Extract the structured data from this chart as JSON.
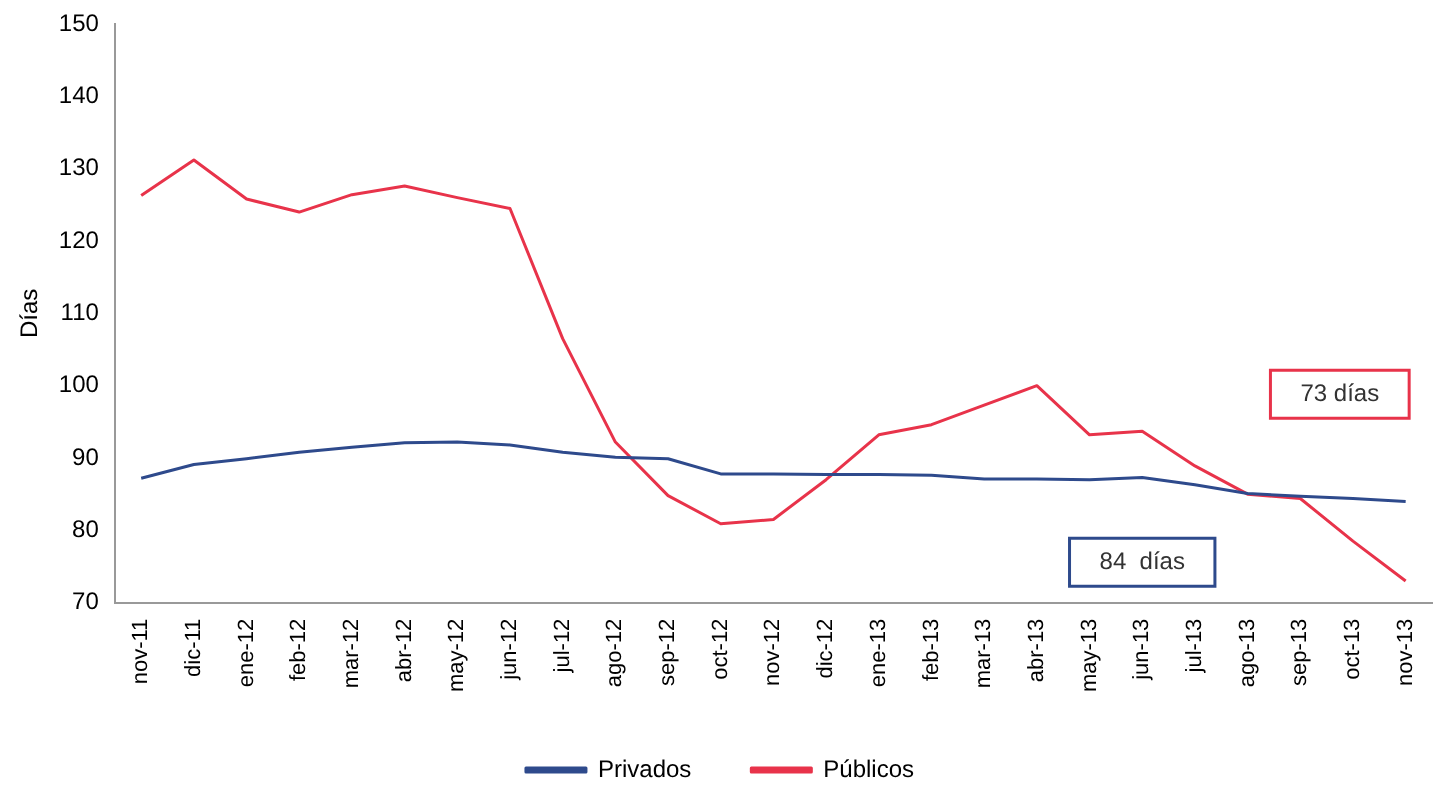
{
  "chart_data": {
    "type": "line",
    "ylabel": "Días",
    "categories": [
      "nov-11",
      "dic-11",
      "ene-12",
      "feb-12",
      "mar-12",
      "abr-12",
      "may-12",
      "jun-12",
      "jul-12",
      "ago-12",
      "sep-12",
      "oct-12",
      "nov-12",
      "dic-12",
      "ene-13",
      "feb-13",
      "mar-13",
      "abr-13",
      "may-13",
      "jun-13",
      "jul-13",
      "ago-13",
      "sep-13",
      "oct-13",
      "nov-13"
    ],
    "series": [
      {
        "name": "Privados",
        "color": "#2e4a8c",
        "values": [
          87.2,
          89.1,
          89.9,
          90.8,
          91.5,
          92.1,
          92.2,
          91.8,
          90.8,
          90.1,
          89.9,
          87.8,
          87.8,
          87.7,
          87.7,
          87.6,
          87.1,
          87.1,
          87,
          87.3,
          86.3,
          85.1,
          84.7,
          84.4,
          84
        ]
      },
      {
        "name": "Públicos",
        "color": "#e8334a",
        "values": [
          126.3,
          131.2,
          125.8,
          124,
          126.4,
          127.6,
          126,
          124.5,
          106.5,
          92.2,
          84.8,
          80.9,
          81.5,
          87,
          93.2,
          94.6,
          97.3,
          100,
          93.2,
          93.7,
          88.9,
          85,
          84.4,
          78.5,
          73
        ]
      }
    ],
    "ylim": [
      70,
      150
    ],
    "yticks": [
      70,
      80,
      90,
      100,
      110,
      120,
      130,
      140,
      150
    ],
    "annotations": [
      "73 días",
      "84  días"
    ],
    "grid": false,
    "legend": "bottom",
    "marker": "none",
    "line_style": "solid"
  }
}
